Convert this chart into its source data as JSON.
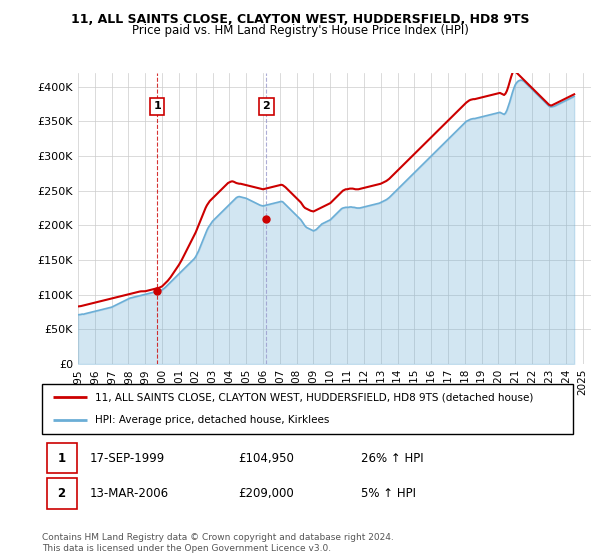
{
  "title": "11, ALL SAINTS CLOSE, CLAYTON WEST, HUDDERSFIELD, HD8 9TS",
  "subtitle": "Price paid vs. HM Land Registry's House Price Index (HPI)",
  "ylabel_ticks": [
    "£0",
    "£50K",
    "£100K",
    "£150K",
    "£200K",
    "£250K",
    "£300K",
    "£350K",
    "£400K"
  ],
  "ytick_values": [
    0,
    50000,
    100000,
    150000,
    200000,
    250000,
    300000,
    350000,
    400000
  ],
  "ylim": [
    0,
    420000
  ],
  "xlim_start": 1995.0,
  "xlim_end": 2025.5,
  "hpi_color": "#6baed6",
  "price_color": "#cc0000",
  "sale1_x": 1999.71,
  "sale1_y": 104950,
  "sale2_x": 2006.2,
  "sale2_y": 209000,
  "sale1_date": "17-SEP-1999",
  "sale1_price": "£104,950",
  "sale1_hpi": "26% ↑ HPI",
  "sale2_date": "13-MAR-2006",
  "sale2_price": "£209,000",
  "sale2_hpi": "5% ↑ HPI",
  "legend_line1": "11, ALL SAINTS CLOSE, CLAYTON WEST, HUDDERSFIELD, HD8 9TS (detached house)",
  "legend_line2": "HPI: Average price, detached house, Kirklees",
  "footer": "Contains HM Land Registry data © Crown copyright and database right 2024.\nThis data is licensed under the Open Government Licence v3.0.",
  "xtick_years": [
    1995,
    1996,
    1997,
    1998,
    1999,
    2000,
    2001,
    2002,
    2003,
    2004,
    2005,
    2006,
    2007,
    2008,
    2009,
    2010,
    2011,
    2012,
    2013,
    2014,
    2015,
    2016,
    2017,
    2018,
    2019,
    2020,
    2021,
    2022,
    2023,
    2024,
    2025
  ]
}
